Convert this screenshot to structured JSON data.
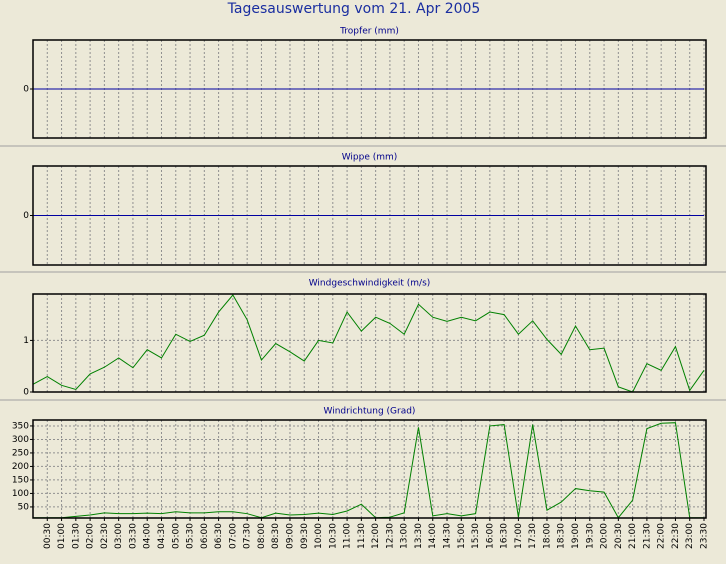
{
  "title": "Tagesauswertung vom 21. Apr 2005",
  "chart_data": [
    {
      "type": "line",
      "title": "Tropfer (mm)",
      "ylim": [
        -1,
        1
      ],
      "yticks": [
        0
      ],
      "grid": true,
      "series": [
        {
          "color": "#0000a0",
          "values": [
            0,
            0,
            0,
            0,
            0,
            0,
            0,
            0,
            0,
            0,
            0,
            0,
            0,
            0,
            0,
            0,
            0,
            0,
            0,
            0,
            0,
            0,
            0,
            0,
            0,
            0,
            0,
            0,
            0,
            0,
            0,
            0,
            0,
            0,
            0,
            0,
            0,
            0,
            0,
            0,
            0,
            0,
            0,
            0,
            0,
            0,
            0,
            0
          ]
        }
      ]
    },
    {
      "type": "line",
      "title": "Wippe (mm)",
      "ylim": [
        -1,
        1
      ],
      "yticks": [
        0
      ],
      "grid": true,
      "series": [
        {
          "color": "#0000a0",
          "values": [
            0,
            0,
            0,
            0,
            0,
            0,
            0,
            0,
            0,
            0,
            0,
            0,
            0,
            0,
            0,
            0,
            0,
            0,
            0,
            0,
            0,
            0,
            0,
            0,
            0,
            0,
            0,
            0,
            0,
            0,
            0,
            0,
            0,
            0,
            0,
            0,
            0,
            0,
            0,
            0,
            0,
            0,
            0,
            0,
            0,
            0,
            0,
            0
          ]
        }
      ]
    },
    {
      "type": "line",
      "title": "Windgeschwindigkeit (m/s)",
      "ylim": [
        0,
        1.9
      ],
      "yticks": [
        0,
        1
      ],
      "grid": true,
      "series": [
        {
          "color": "#008000",
          "values": [
            0.15,
            0.3,
            0.13,
            0.05,
            0.35,
            0.48,
            0.66,
            0.47,
            0.82,
            0.66,
            1.12,
            0.98,
            1.1,
            1.55,
            1.88,
            1.4,
            0.62,
            0.94,
            0.78,
            0.6,
            1.0,
            0.95,
            1.55,
            1.18,
            1.45,
            1.33,
            1.12,
            1.7,
            1.45,
            1.37,
            1.45,
            1.38,
            1.55,
            1.5,
            1.12,
            1.38,
            1.02,
            0.73,
            1.28,
            0.82,
            0.85,
            0.1,
            0.0,
            0.55,
            0.42,
            0.88,
            0.03,
            0.42
          ]
        }
      ]
    },
    {
      "type": "line",
      "title": "Windrichtung (Grad)",
      "ylim": [
        9,
        372
      ],
      "yticks": [
        50,
        100,
        150,
        200,
        250,
        300,
        350
      ],
      "grid": true,
      "categories": [
        null,
        "00:30",
        "01:00",
        "01:30",
        "02:00",
        "02:30",
        "03:00",
        "03:30",
        "04:00",
        "04:30",
        "05:00",
        "05:30",
        "06:00",
        "06:30",
        "07:00",
        "07:30",
        "08:00",
        "08:30",
        "09:00",
        "09:30",
        "10:00",
        "10:30",
        "11:00",
        "11:30",
        "12:00",
        "12:30",
        "13:00",
        "13:30",
        "14:00",
        "14:30",
        "15:00",
        "15:30",
        "16:00",
        "16:30",
        "17:00",
        "17:30",
        "18:00",
        "18:30",
        "19:00",
        "19:30",
        "20:00",
        "20:30",
        "21:00",
        "21:30",
        "22:00",
        "22:30",
        "23:00",
        "23:30"
      ],
      "series": [
        {
          "color": "#008000",
          "values": [
            10,
            10,
            10,
            15,
            20,
            28,
            25,
            25,
            27,
            25,
            32,
            28,
            28,
            32,
            32,
            25,
            10,
            27,
            20,
            22,
            27,
            22,
            35,
            60,
            10,
            12,
            28,
            345,
            17,
            25,
            17,
            25,
            350,
            355,
            12,
            355,
            38,
            68,
            118,
            110,
            105,
            10,
            75,
            340,
            360,
            362,
            10,
            10
          ]
        }
      ]
    }
  ]
}
